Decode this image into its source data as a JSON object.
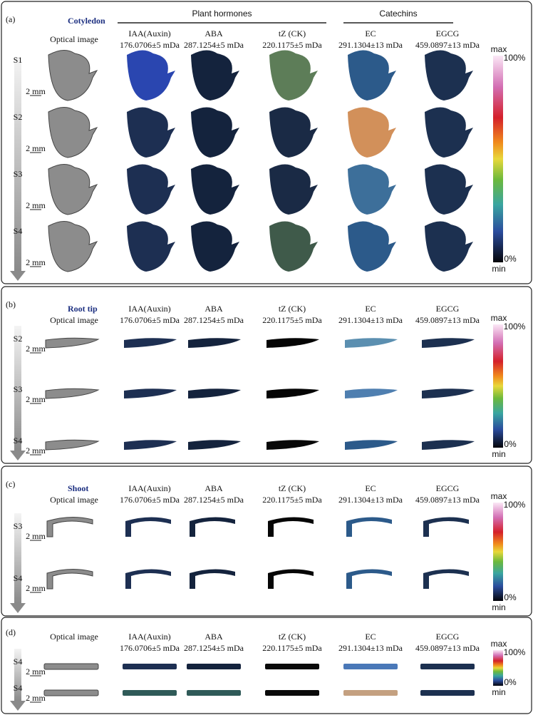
{
  "panels": [
    {
      "label": "(a)",
      "title": "Cotyledon",
      "groups": [
        "Plant hormones",
        "Catechins"
      ],
      "columns": [
        {
          "name": "Optical image"
        },
        {
          "name": "IAA(Auxin)",
          "mass": "176.0706±5 mDa"
        },
        {
          "name": "ABA",
          "mass": "287.1254±5 mDa"
        },
        {
          "name": "tZ (CK)",
          "mass": "220.1175±5 mDa"
        },
        {
          "name": "EC",
          "mass": "291.1304±13 mDa"
        },
        {
          "name": "EGCG",
          "mass": "459.0897±13 mDa"
        }
      ],
      "stages": [
        "S1",
        "S2",
        "S3",
        "S4"
      ],
      "scale_bar": "2 mm",
      "colorbar": {
        "top": "max",
        "high": "100%",
        "low": "0%",
        "bottom": "min"
      }
    },
    {
      "label": "(b)",
      "title": "Root tip",
      "columns": [
        {
          "name": "Optical image"
        },
        {
          "name": "IAA(Auxin)",
          "mass": "176.0706±5 mDa"
        },
        {
          "name": "ABA",
          "mass": "287.1254±5 mDa"
        },
        {
          "name": "tZ (CK)",
          "mass": "220.1175±5 mDa"
        },
        {
          "name": "EC",
          "mass": "291.1304±13 mDa"
        },
        {
          "name": "EGCG",
          "mass": "459.0897±13 mDa"
        }
      ],
      "stages": [
        "S2",
        "S3",
        "S4"
      ],
      "scale_bar": "2 mm",
      "colorbar": {
        "top": "max",
        "high": "100%",
        "low": "0%",
        "bottom": "min"
      }
    },
    {
      "label": "(c)",
      "title": "Shoot",
      "columns": [
        {
          "name": "Optical image"
        },
        {
          "name": "IAA(Auxin)",
          "mass": "176.0706±5 mDa"
        },
        {
          "name": "ABA",
          "mass": "287.1254±5 mDa"
        },
        {
          "name": "tZ (CK)",
          "mass": "220.1175±5 mDa"
        },
        {
          "name": "EC",
          "mass": "291.1304±13 mDa"
        },
        {
          "name": "EGCG",
          "mass": "459.0897±13 mDa"
        }
      ],
      "stages": [
        "S3",
        "S4"
      ],
      "scale_bar": "2 mm",
      "colorbar": {
        "top": "max",
        "high": "100%",
        "low": "0%",
        "bottom": "min"
      }
    },
    {
      "label": "(d)",
      "columns": [
        {
          "name": "Optical image"
        },
        {
          "name": "IAA(Auxin)",
          "mass": "176.0706±5 mDa"
        },
        {
          "name": "ABA",
          "mass": "287.1254±5 mDa"
        },
        {
          "name": "tZ (CK)",
          "mass": "220.1175±5 mDa"
        },
        {
          "name": "EC",
          "mass": "291.1304±13 mDa"
        },
        {
          "name": "EGCG",
          "mass": "459.0897±13 mDa"
        }
      ],
      "stages": [
        "S4",
        "S4"
      ],
      "scale_bar": "2 mm",
      "colorbar": {
        "top": "max",
        "high": "100%",
        "low": "0%",
        "bottom": "min"
      }
    }
  ]
}
